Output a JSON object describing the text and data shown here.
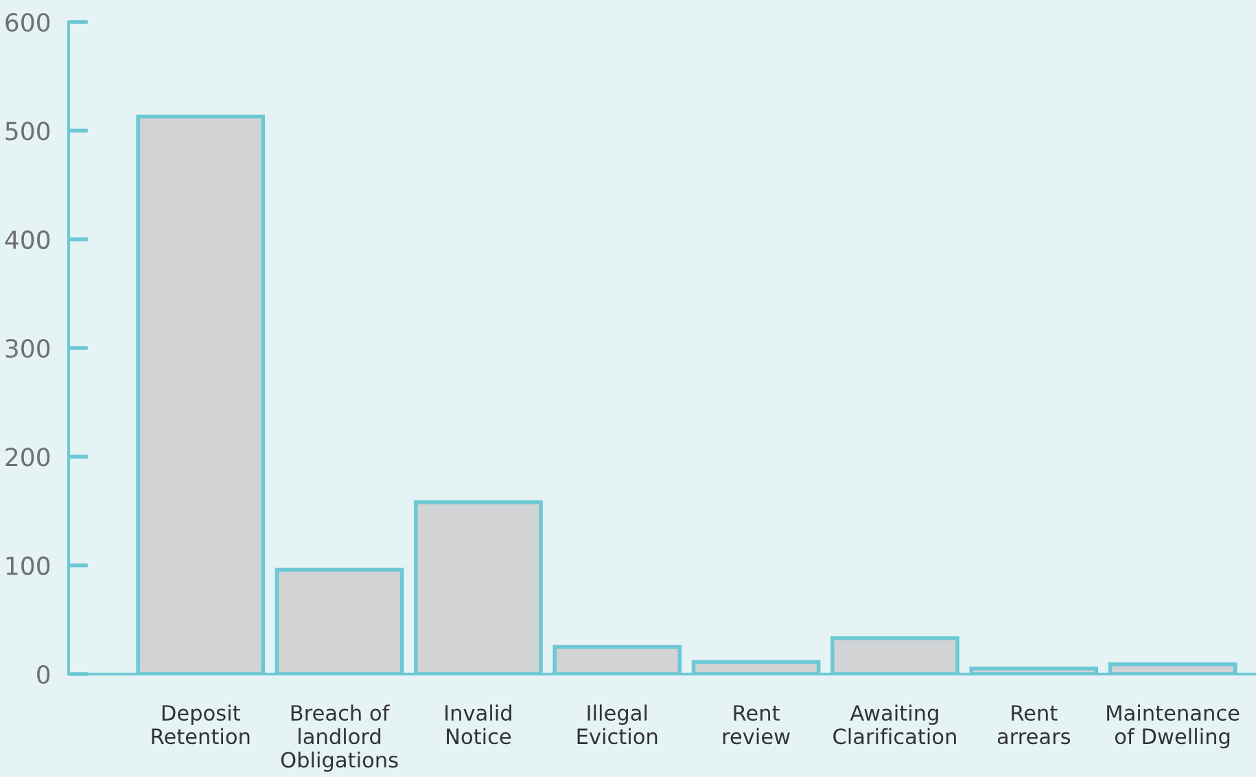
{
  "chart_data": {
    "type": "bar",
    "categories": [
      "Deposit\nRetention",
      "Breach of\nlandlord\nObligations",
      "Invalid\nNotice",
      "Illegal\nEviction",
      "Rent\nreview",
      "Awaiting\nClarification",
      "Rent\narrears",
      "Maintenance\nof Dwelling"
    ],
    "values": [
      513,
      96,
      158,
      25,
      11,
      33,
      5,
      9
    ],
    "color": "#d2d3d5",
    "ylim": [
      0,
      600
    ],
    "yticks": [
      0,
      100,
      200,
      300,
      400,
      500,
      600
    ],
    "grid": false
  }
}
